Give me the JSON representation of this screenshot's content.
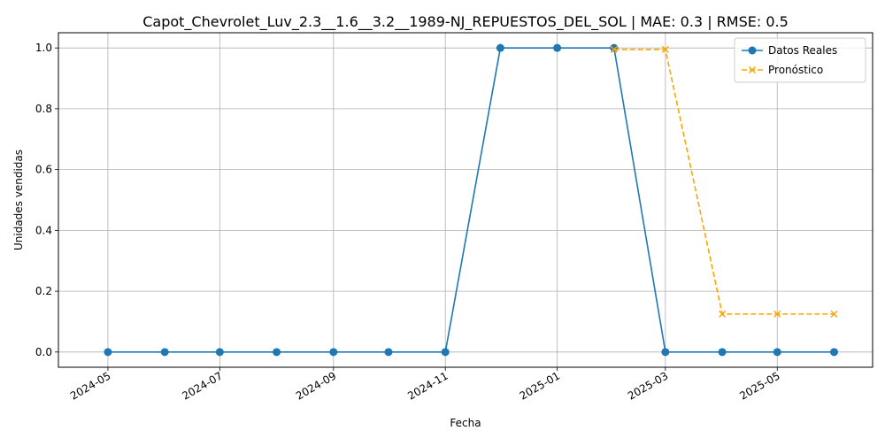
{
  "chart_data": {
    "type": "line",
    "title": "Capot_Chevrolet_Luv_2.3__1.6__3.2__1989-NJ_REPUESTOS_DEL_SOL | MAE: 0.3 | RMSE: 0.5",
    "xlabel": "Fecha",
    "ylabel": "Unidades vendidas",
    "x_ticks": [
      "2024-05",
      "2024-07",
      "2024-09",
      "2024-11",
      "2025-01",
      "2025-03",
      "2025-05"
    ],
    "y_ticks": [
      "0.0",
      "0.2",
      "0.4",
      "0.6",
      "0.8",
      "1.0"
    ],
    "ylim": [
      -0.05,
      1.05
    ],
    "xlim": [
      "2024-04-04",
      "2025-06-22"
    ],
    "grid": true,
    "legend_position": "top-right",
    "series": [
      {
        "name": "Datos Reales",
        "color": "#1f77b4",
        "style": "solid",
        "marker": "circle",
        "x": [
          "2024-05-01",
          "2024-06-01",
          "2024-07-01",
          "2024-08-01",
          "2024-09-01",
          "2024-10-01",
          "2024-11-01",
          "2024-12-01",
          "2025-01-01",
          "2025-02-01",
          "2025-03-01",
          "2025-04-01",
          "2025-05-01",
          "2025-06-01"
        ],
        "values": [
          0,
          0,
          0,
          0,
          0,
          0,
          0,
          1,
          1,
          1,
          0,
          0,
          0,
          0
        ]
      },
      {
        "name": "Pronóstico",
        "color": "#ffa500",
        "style": "dashed",
        "marker": "x",
        "x": [
          "2025-02-01",
          "2025-03-01",
          "2025-04-01",
          "2025-05-01",
          "2025-06-01"
        ],
        "values": [
          0.995,
          0.995,
          0.125,
          0.125,
          0.125
        ]
      }
    ]
  }
}
